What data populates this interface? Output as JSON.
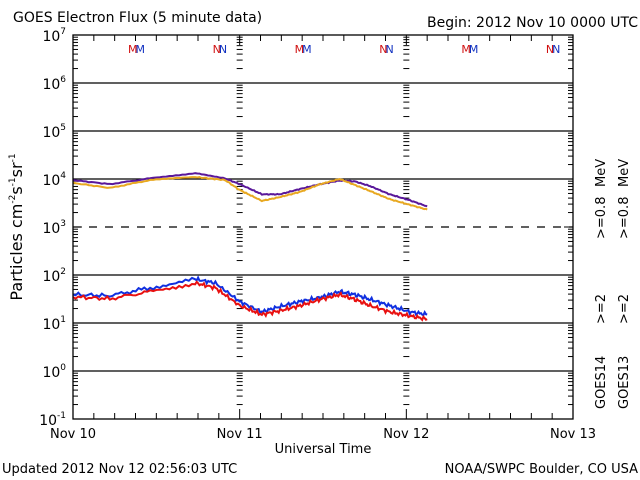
{
  "chart_data": {
    "type": "line",
    "title": "GOES Electron Flux (5 minute data)",
    "subtitle": "Begin: 2012 Nov 10 0000 UTC",
    "xlabel": "Universal Time",
    "ylabel": "Particles cm-2s-1sr-1",
    "ylabel_parts": {
      "base": "Particles cm",
      "e1": "-2",
      "s": "s",
      "e2": "-1",
      "sr": "sr",
      "e3": "-1"
    },
    "yscale": "log",
    "ylim": [
      0.1,
      10000000
    ],
    "xlim_hours": [
      0,
      72
    ],
    "x_ticks": [
      {
        "hours": 0,
        "label": "Nov 10"
      },
      {
        "hours": 24,
        "label": "Nov 11"
      },
      {
        "hours": 48,
        "label": "Nov 12"
      },
      {
        "hours": 72,
        "label": "Nov 13"
      }
    ],
    "y_ticks": [
      {
        "exp": 7,
        "base": "10",
        "sup": "7"
      },
      {
        "exp": 6,
        "base": "10",
        "sup": "6"
      },
      {
        "exp": 5,
        "base": "10",
        "sup": "5"
      },
      {
        "exp": 4,
        "base": "10",
        "sup": "4"
      },
      {
        "exp": 3,
        "base": "10",
        "sup": "3"
      },
      {
        "exp": 2,
        "base": "10",
        "sup": "2"
      },
      {
        "exp": 1,
        "base": "10",
        "sup": "1"
      },
      {
        "exp": 0,
        "base": "10",
        "sup": "0"
      },
      {
        "exp": -1,
        "base": "10",
        "sup": "-1"
      }
    ],
    "threshold_dashed_exp": 3,
    "grid": "horizontal at decades",
    "markers": [
      {
        "hours": 9,
        "label": "MM"
      },
      {
        "hours": 21,
        "label": "NN"
      },
      {
        "hours": 33,
        "label": "MM"
      },
      {
        "hours": 45,
        "label": "NN"
      },
      {
        "hours": 57,
        "label": "MM"
      },
      {
        "hours": 69,
        "label": "NN"
      }
    ],
    "series": [
      {
        "name": "GOES14 >=0.8 MeV",
        "color": "#5a189a",
        "x_hours": [
          0,
          5.3,
          11.1,
          17.6,
          21.9,
          24.0,
          27.2,
          29.8,
          32.7,
          35.6,
          38.4,
          40.6,
          42.8,
          45.6,
          48.5,
          51.0
        ],
        "values": [
          9500,
          7800,
          10300,
          13300,
          10300,
          7800,
          4800,
          4800,
          6200,
          7800,
          9300,
          8900,
          7100,
          4800,
          3600,
          2700
        ]
      },
      {
        "name": "GOES13 >=0.8 MeV",
        "color": "#e8a820",
        "x_hours": [
          0,
          5.3,
          11.1,
          17.6,
          21.9,
          24.0,
          27.2,
          29.8,
          32.7,
          35.6,
          38.4,
          40.6,
          42.8,
          45.6,
          48.5,
          51.0
        ],
        "values": [
          8300,
          6500,
          9500,
          11000,
          9500,
          5900,
          3500,
          4200,
          5400,
          7800,
          10000,
          7500,
          5600,
          3800,
          2900,
          2300
        ]
      },
      {
        "name": "GOES14 >=2 MeV",
        "color": "#1030e0",
        "x_hours": [
          0,
          5.3,
          11.1,
          17.6,
          20.5,
          24.0,
          27.2,
          29.8,
          32.7,
          35.6,
          38.4,
          40.6,
          42.8,
          45.6,
          48.5,
          51.0
        ],
        "values": [
          39,
          37,
          54,
          82,
          68,
          28,
          17,
          22,
          28,
          34,
          45,
          39,
          31,
          23,
          17,
          15
        ]
      },
      {
        "name": "GOES13 >=2 MeV",
        "color": "#e81010",
        "x_hours": [
          0,
          5.3,
          11.1,
          17.6,
          20.5,
          24.0,
          27.2,
          29.8,
          32.7,
          35.6,
          38.4,
          40.6,
          42.8,
          45.6,
          48.5,
          51.0
        ],
        "values": [
          35,
          32,
          45,
          68,
          54,
          23,
          15,
          18,
          23,
          31,
          39,
          31,
          23,
          17,
          14,
          12
        ]
      }
    ],
    "legend": {
      "placement": "right (rotated)",
      "columns": [
        {
          "satellite": "GOES14",
          "low": ">=2",
          "high": ">=0.8",
          "unit": "MeV",
          "low_color": "#1030e0",
          "high_color": "#5a189a"
        },
        {
          "satellite": "GOES13",
          "low": ">=2",
          "high": ">=0.8",
          "unit": "MeV",
          "low_color": "#e81010",
          "high_color": "#e8a820"
        }
      ]
    }
  },
  "footer": {
    "updated": "Updated 2012 Nov 12 02:56:03 UTC",
    "credit": "NOAA/SWPC Boulder, CO USA"
  }
}
